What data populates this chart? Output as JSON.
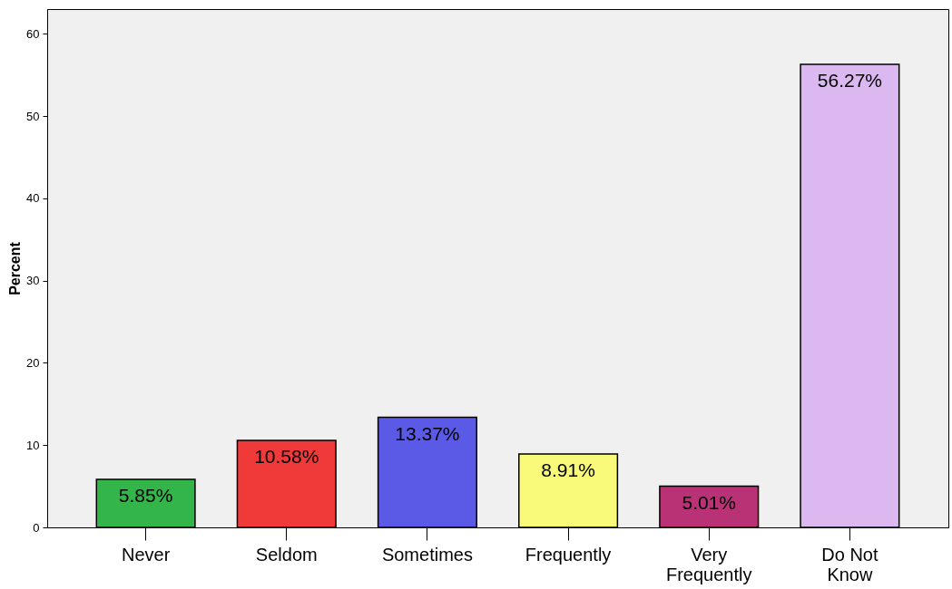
{
  "chart_data": {
    "type": "bar",
    "ylabel": "Percent",
    "categories": [
      "Never",
      "Seldom",
      "Sometimes",
      "Frequently",
      "Very Frequently",
      "Do Not Know"
    ],
    "values": [
      5.85,
      10.58,
      13.37,
      8.91,
      5.01,
      56.27
    ],
    "colors": [
      "#33b54a",
      "#f03a3a",
      "#5a5ae6",
      "#fafa7a",
      "#b83275",
      "#dcb8f0"
    ],
    "value_labels": [
      "5.85%",
      "10.58%",
      "13.37%",
      "8.91%",
      "5.01%",
      "56.27%"
    ],
    "ylim": [
      0,
      63
    ],
    "yticks": [
      0,
      10,
      20,
      30,
      40,
      50,
      60
    ],
    "grid": false
  }
}
